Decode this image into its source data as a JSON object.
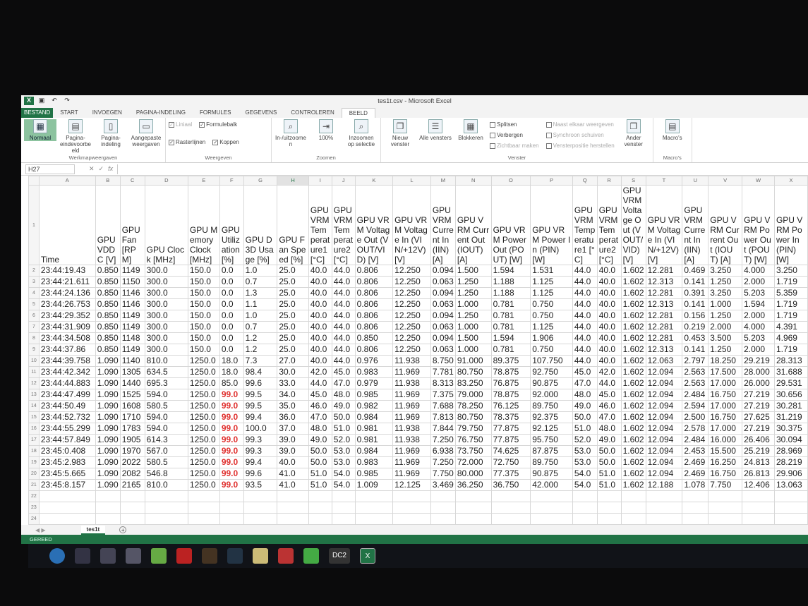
{
  "window": {
    "title": "tes1t.csv - Microsoft Excel"
  },
  "ribbon": {
    "tabs": [
      "BESTAND",
      "START",
      "INVOEGEN",
      "PAGINA-INDELING",
      "FORMULES",
      "GEGEVENS",
      "CONTROLEREN",
      "BEELD"
    ],
    "active_tab": "BEELD",
    "groups": {
      "werkmap": {
        "label": "Werkmapweergaven",
        "buttons": [
          "Normaal",
          "Pagina-eindevoorbeeld",
          "Pagina-indeling",
          "Aangepaste weergaven"
        ]
      },
      "weergeven": {
        "label": "Weergeven",
        "checks": [
          {
            "label": "Liniaal",
            "checked": true,
            "disabled": true
          },
          {
            "label": "Formulebalk",
            "checked": true
          },
          {
            "label": "Rasterlijnen",
            "checked": true
          },
          {
            "label": "Koppen",
            "checked": true
          }
        ]
      },
      "zoomen": {
        "label": "Zoomen",
        "buttons": [
          "In-/uitzoomen",
          "100%",
          "Inzoomen op selectie"
        ]
      },
      "venster": {
        "label": "Venster",
        "buttons": [
          "Nieuw venster",
          "Alle vensters",
          "Blokkeren"
        ],
        "small": [
          "Splitsen",
          "Verbergen",
          "Zichtbaar maken",
          "Naast elkaar weergeven",
          "Synchroon schuiven",
          "Vensterpositie herstellen"
        ],
        "other": "Ander venster"
      },
      "macros": {
        "label": "Macro's",
        "buttons": [
          "Macro's"
        ]
      }
    }
  },
  "formula_bar": {
    "name_box": "H27",
    "fx": "fx",
    "value": ""
  },
  "sheet": {
    "selected_column": "H",
    "columns": [
      "A",
      "B",
      "C",
      "D",
      "E",
      "F",
      "G",
      "H",
      "I",
      "J",
      "K",
      "L",
      "M",
      "N",
      "O",
      "P",
      "Q",
      "R",
      "S",
      "T",
      "U",
      "V",
      "W",
      "X"
    ],
    "headers": [
      "Time",
      "GPU VDDC [V]",
      "GPU Fan [RPM]",
      "GPU Clock [MHz]",
      "GPU Memory Clock [MHz]",
      "GPU Utilization [%]",
      "GPU D3D Usage [%]",
      "GPU Fan Speed [%]",
      "GPU VRM Temperature1 [°C]",
      "GPU VRM Temperature2 [°C]",
      "GPU VRM Voltage Out (VOUT/VID) [V]",
      "GPU VRM Voltage In (VIN/+12V) [V]",
      "GPU VRM Current In (IIN) [A]",
      "GPU VRM Current Out (IOUT) [A]",
      "GPU VRM Power Out (POUT) [W]",
      "GPU VRM Power In (PIN) [W]",
      "GPU VRM Temperature1 [°C]",
      "GPU VRM Temperature2 [°C]",
      "GPU VRM Voltage Out (VOUT/VID) [V]",
      "GPU VRM Voltage In (VIN/+12V) [V]",
      "GPU VRM Current In (IIN) [A]",
      "GPU VRM Current Out (IOUT) [A]",
      "GPU VRM Power Out (POUT) [W]",
      "GPU VRM Power In (PIN) [W]"
    ],
    "rows": [
      [
        "23:44:19.43",
        "0.850",
        "1149",
        "300.0",
        "150.0",
        "0.0",
        "1.0",
        "25.0",
        "40.0",
        "44.0",
        "0.806",
        "12.250",
        "0.094",
        "1.500",
        "1.594",
        "1.531",
        "44.0",
        "40.0",
        "1.602",
        "12.281",
        "0.469",
        "3.250",
        "4.000",
        "3.250"
      ],
      [
        "23:44:21.611",
        "0.850",
        "1150",
        "300.0",
        "150.0",
        "0.0",
        "0.7",
        "25.0",
        "40.0",
        "44.0",
        "0.806",
        "12.250",
        "0.063",
        "1.250",
        "1.188",
        "1.125",
        "44.0",
        "40.0",
        "1.602",
        "12.313",
        "0.141",
        "1.250",
        "2.000",
        "1.719"
      ],
      [
        "23:44:24.136",
        "0.850",
        "1146",
        "300.0",
        "150.0",
        "0.0",
        "1.3",
        "25.0",
        "40.0",
        "44.0",
        "0.806",
        "12.250",
        "0.094",
        "1.250",
        "1.188",
        "1.125",
        "44.0",
        "40.0",
        "1.602",
        "12.281",
        "0.391",
        "3.250",
        "5.203",
        "5.359"
      ],
      [
        "23:44:26.753",
        "0.850",
        "1146",
        "300.0",
        "150.0",
        "0.0",
        "1.1",
        "25.0",
        "40.0",
        "44.0",
        "0.806",
        "12.250",
        "0.063",
        "1.000",
        "0.781",
        "0.750",
        "44.0",
        "40.0",
        "1.602",
        "12.313",
        "0.141",
        "1.000",
        "1.594",
        "1.719"
      ],
      [
        "23:44:29.352",
        "0.850",
        "1149",
        "300.0",
        "150.0",
        "0.0",
        "1.0",
        "25.0",
        "40.0",
        "44.0",
        "0.806",
        "12.250",
        "0.094",
        "1.250",
        "0.781",
        "0.750",
        "44.0",
        "40.0",
        "1.602",
        "12.281",
        "0.156",
        "1.250",
        "2.000",
        "1.719"
      ],
      [
        "23:44:31.909",
        "0.850",
        "1149",
        "300.0",
        "150.0",
        "0.0",
        "0.7",
        "25.0",
        "40.0",
        "44.0",
        "0.806",
        "12.250",
        "0.063",
        "1.000",
        "0.781",
        "1.125",
        "44.0",
        "40.0",
        "1.602",
        "12.281",
        "0.219",
        "2.000",
        "4.000",
        "4.391"
      ],
      [
        "23:44:34.508",
        "0.850",
        "1148",
        "300.0",
        "150.0",
        "0.0",
        "1.2",
        "25.0",
        "40.0",
        "44.0",
        "0.850",
        "12.250",
        "0.094",
        "1.500",
        "1.594",
        "1.906",
        "44.0",
        "40.0",
        "1.602",
        "12.281",
        "0.453",
        "3.500",
        "5.203",
        "4.969"
      ],
      [
        "23:44:37.86",
        "0.850",
        "1149",
        "300.0",
        "150.0",
        "0.0",
        "1.2",
        "25.0",
        "40.0",
        "44.0",
        "0.806",
        "12.250",
        "0.063",
        "1.000",
        "0.781",
        "0.750",
        "44.0",
        "40.0",
        "1.602",
        "12.313",
        "0.141",
        "1.250",
        "2.000",
        "1.719"
      ],
      [
        "23:44:39.758",
        "1.090",
        "1140",
        "810.0",
        "1250.0",
        "18.0",
        "7.3",
        "27.0",
        "40.0",
        "44.0",
        "0.976",
        "11.938",
        "8.750",
        "91.000",
        "89.375",
        "107.750",
        "44.0",
        "40.0",
        "1.602",
        "12.063",
        "2.797",
        "18.250",
        "29.219",
        "28.313"
      ],
      [
        "23:44:42.342",
        "1.090",
        "1305",
        "634.5",
        "1250.0",
        "18.0",
        "98.4",
        "30.0",
        "42.0",
        "45.0",
        "0.983",
        "11.969",
        "7.781",
        "80.750",
        "78.875",
        "92.750",
        "45.0",
        "42.0",
        "1.602",
        "12.094",
        "2.563",
        "17.500",
        "28.000",
        "31.688"
      ],
      [
        "23:44:44.883",
        "1.090",
        "1440",
        "695.3",
        "1250.0",
        "85.0",
        "99.6",
        "33.0",
        "44.0",
        "47.0",
        "0.979",
        "11.938",
        "8.313",
        "83.250",
        "76.875",
        "90.875",
        "47.0",
        "44.0",
        "1.602",
        "12.094",
        "2.563",
        "17.000",
        "26.000",
        "29.531"
      ],
      [
        "23:44:47.499",
        "1.090",
        "1525",
        "594.0",
        "1250.0",
        "99.0",
        "99.5",
        "34.0",
        "45.0",
        "48.0",
        "0.985",
        "11.969",
        "7.375",
        "79.000",
        "78.875",
        "92.000",
        "48.0",
        "45.0",
        "1.602",
        "12.094",
        "2.484",
        "16.750",
        "27.219",
        "30.656"
      ],
      [
        "23:44:50.49",
        "1.090",
        "1608",
        "580.5",
        "1250.0",
        "99.0",
        "99.5",
        "35.0",
        "46.0",
        "49.0",
        "0.982",
        "11.969",
        "7.688",
        "78.250",
        "76.125",
        "89.750",
        "49.0",
        "46.0",
        "1.602",
        "12.094",
        "2.594",
        "17.000",
        "27.219",
        "30.281"
      ],
      [
        "23:44:52.732",
        "1.090",
        "1710",
        "594.0",
        "1250.0",
        "99.0",
        "99.4",
        "36.0",
        "47.0",
        "50.0",
        "0.984",
        "11.969",
        "7.813",
        "80.750",
        "78.375",
        "92.375",
        "50.0",
        "47.0",
        "1.602",
        "12.094",
        "2.500",
        "16.750",
        "27.625",
        "31.219"
      ],
      [
        "23:44:55.299",
        "1.090",
        "1783",
        "594.0",
        "1250.0",
        "99.0",
        "100.0",
        "37.0",
        "48.0",
        "51.0",
        "0.981",
        "11.938",
        "7.844",
        "79.750",
        "77.875",
        "92.125",
        "51.0",
        "48.0",
        "1.602",
        "12.094",
        "2.578",
        "17.000",
        "27.219",
        "30.375"
      ],
      [
        "23:44:57.849",
        "1.090",
        "1905",
        "614.3",
        "1250.0",
        "99.0",
        "99.3",
        "39.0",
        "49.0",
        "52.0",
        "0.981",
        "11.938",
        "7.250",
        "76.750",
        "77.875",
        "95.750",
        "52.0",
        "49.0",
        "1.602",
        "12.094",
        "2.484",
        "16.000",
        "26.406",
        "30.094"
      ],
      [
        "23:45:0.408",
        "1.090",
        "1970",
        "567.0",
        "1250.0",
        "99.0",
        "99.3",
        "39.0",
        "50.0",
        "53.0",
        "0.984",
        "11.969",
        "6.938",
        "73.750",
        "74.625",
        "87.875",
        "53.0",
        "50.0",
        "1.602",
        "12.094",
        "2.453",
        "15.500",
        "25.219",
        "28.969"
      ],
      [
        "23:45:2.983",
        "1.090",
        "2022",
        "580.5",
        "1250.0",
        "99.0",
        "99.4",
        "40.0",
        "50.0",
        "53.0",
        "0.983",
        "11.969",
        "7.250",
        "72.000",
        "72.750",
        "89.750",
        "53.0",
        "50.0",
        "1.602",
        "12.094",
        "2.469",
        "16.250",
        "24.813",
        "28.219"
      ],
      [
        "23:45:5.665",
        "1.090",
        "2082",
        "546.8",
        "1250.0",
        "99.0",
        "99.6",
        "41.0",
        "51.0",
        "54.0",
        "0.985",
        "11.969",
        "7.750",
        "80.000",
        "77.375",
        "90.875",
        "54.0",
        "51.0",
        "1.602",
        "12.094",
        "2.469",
        "16.750",
        "26.813",
        "29.906"
      ],
      [
        "23:45:8.157",
        "1.090",
        "2165",
        "810.0",
        "1250.0",
        "99.0",
        "93.5",
        "41.0",
        "51.0",
        "54.0",
        "1.009",
        "12.125",
        "3.469",
        "36.250",
        "36.750",
        "42.000",
        "54.0",
        "51.0",
        "1.602",
        "12.188",
        "1.078",
        "7.750",
        "12.406",
        "13.063"
      ]
    ],
    "empty_rows": 3,
    "highlight": {
      "column": "F",
      "value": "99.0",
      "color": "#e0312f"
    },
    "sheet_tab": "tes1t",
    "status": "GEREED"
  },
  "colors": {
    "excel_green": "#217346"
  },
  "taskbar": {
    "icons": [
      "start-orb-icon",
      "media-icon",
      "satellite-icon",
      "calendar-icon",
      "image-editor-icon",
      "filezilla-icon",
      "unreal-icon",
      "steam-icon",
      "file-explorer-icon",
      "ccleaner-icon",
      "chrome-icon",
      "dc2-icon",
      "excel-icon"
    ],
    "dc2_label": "DC2",
    "excel_label": "X"
  }
}
